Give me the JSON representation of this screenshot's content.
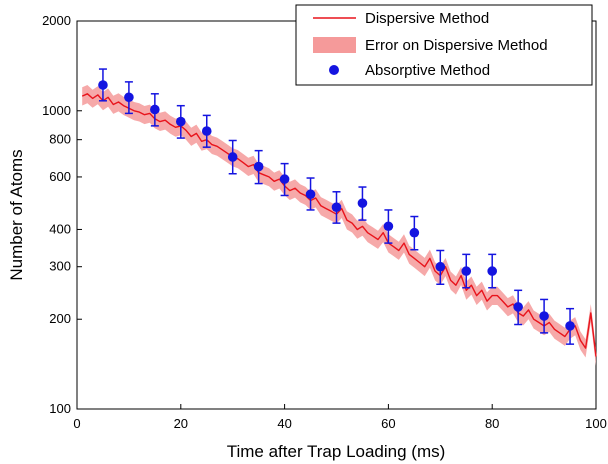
{
  "chart_data": {
    "type": "line",
    "title": "",
    "xlabel": "Time after Trap Loading (ms)",
    "ylabel": "Number of Atoms",
    "xlim": [
      0,
      100
    ],
    "ylim": [
      100,
      2000
    ],
    "yscale": "log",
    "x_ticks": [
      0,
      20,
      40,
      60,
      80,
      100
    ],
    "y_ticks": [
      100,
      200,
      300,
      400,
      600,
      800,
      1000,
      2000
    ],
    "legend_position": "top-right",
    "grid": false,
    "colors": {
      "dispersive": "#e8141c",
      "error_band": "#f59a9a",
      "absorptive": "#1414e0"
    },
    "legend": [
      {
        "label": "Dispersive Method",
        "kind": "line"
      },
      {
        "label": "Error on Dispersive Method",
        "kind": "band"
      },
      {
        "label": "Absorptive Method",
        "kind": "marker"
      }
    ],
    "series": [
      {
        "name": "Dispersive Method",
        "kind": "line",
        "x": [
          1,
          2,
          3,
          4,
          5,
          6,
          7,
          8,
          9,
          10,
          11,
          12,
          13,
          14,
          15,
          16,
          17,
          18,
          19,
          20,
          21,
          22,
          23,
          24,
          25,
          26,
          27,
          28,
          29,
          30,
          31,
          32,
          33,
          34,
          35,
          36,
          37,
          38,
          39,
          40,
          41,
          42,
          43,
          44,
          45,
          46,
          47,
          48,
          49,
          50,
          51,
          52,
          53,
          54,
          55,
          56,
          57,
          58,
          59,
          60,
          61,
          62,
          63,
          64,
          65,
          66,
          67,
          68,
          69,
          70,
          71,
          72,
          73,
          74,
          75,
          76,
          77,
          78,
          79,
          80,
          81,
          82,
          83,
          84,
          85,
          86,
          87,
          88,
          89,
          90,
          91,
          92,
          93,
          94,
          95,
          96,
          97,
          98,
          99,
          100
        ],
        "y": [
          1120,
          1140,
          1100,
          1130,
          1080,
          1110,
          1050,
          1070,
          1040,
          1020,
          1000,
          990,
          970,
          980,
          940,
          920,
          930,
          900,
          880,
          890,
          860,
          820,
          840,
          790,
          800,
          770,
          760,
          740,
          720,
          700,
          690,
          670,
          650,
          660,
          620,
          610,
          600,
          580,
          590,
          560,
          540,
          550,
          530,
          520,
          500,
          510,
          480,
          470,
          460,
          450,
          470,
          430,
          420,
          400,
          410,
          390,
          380,
          370,
          390,
          360,
          350,
          340,
          360,
          330,
          320,
          310,
          300,
          320,
          290,
          280,
          300,
          270,
          260,
          280,
          250,
          260,
          240,
          250,
          230,
          240,
          240,
          230,
          220,
          225,
          210,
          205,
          215,
          200,
          195,
          190,
          195,
          185,
          180,
          175,
          185,
          190,
          170,
          160,
          210,
          150
        ]
      },
      {
        "name": "Error on Dispersive Method",
        "kind": "band",
        "relative_half_width": 0.07
      },
      {
        "name": "Absorptive Method",
        "kind": "scatter",
        "x": [
          5,
          10,
          15,
          20,
          25,
          30,
          35,
          40,
          45,
          50,
          55,
          60,
          65,
          70,
          75,
          80,
          85,
          90,
          95
        ],
        "y": [
          1220,
          1110,
          1010,
          920,
          855,
          700,
          650,
          590,
          525,
          475,
          490,
          410,
          390,
          300,
          290,
          290,
          220,
          205,
          190
        ],
        "err_low": [
          140,
          130,
          120,
          110,
          100,
          85,
          80,
          70,
          60,
          55,
          60,
          50,
          48,
          38,
          35,
          35,
          28,
          25,
          25
        ],
        "err_high": [
          160,
          140,
          130,
          120,
          110,
          95,
          85,
          75,
          70,
          60,
          65,
          55,
          52,
          40,
          40,
          40,
          30,
          28,
          27
        ]
      }
    ]
  }
}
